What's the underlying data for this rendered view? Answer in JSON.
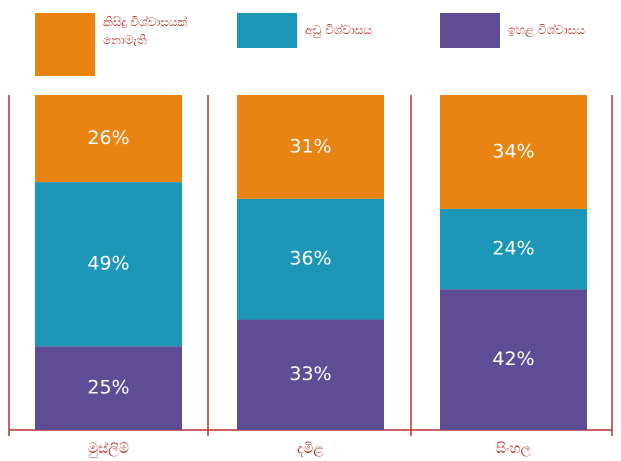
{
  "chart_data": {
    "type": "stacked_bar",
    "categories": [
      "මුස්ලිම්",
      "දමිළ",
      "සිංහල"
    ],
    "series": [
      {
        "name": "කිසිදු විශ්වාසයක් නොමැති",
        "color": "#e98412",
        "values": [
          26,
          31,
          34
        ],
        "value_labels": [
          "26%",
          "31%",
          "34%"
        ]
      },
      {
        "name": "අඩු විශ්වාසය",
        "color": "#1d97b8",
        "values": [
          49,
          36,
          24
        ],
        "value_labels": [
          "49%",
          "36%",
          "24%"
        ]
      },
      {
        "name": "ඉහළ විශ්වාසය",
        "color": "#5e4d95",
        "values": [
          25,
          33,
          42
        ],
        "value_labels": [
          "25%",
          "33%",
          "42%"
        ]
      }
    ],
    "ylim": [
      0,
      100
    ]
  }
}
